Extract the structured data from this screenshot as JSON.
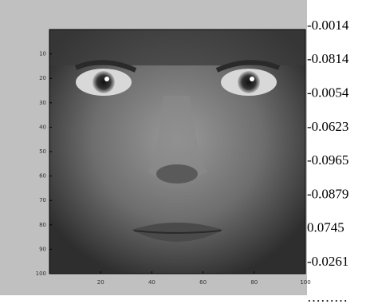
{
  "figure": {
    "axes": {
      "xlim": [
        0,
        100
      ],
      "ylim": [
        0,
        100
      ],
      "xticks": [
        20,
        40,
        60,
        80,
        100
      ],
      "yticks": [
        10,
        20,
        30,
        40,
        50,
        60,
        70,
        80,
        90,
        100
      ]
    },
    "coefficients": [
      -0.0014,
      -0.0814,
      -0.0054,
      -0.0623,
      -0.0965,
      -0.0879,
      0.0745,
      -0.0261
    ],
    "ellipsis": "………"
  }
}
